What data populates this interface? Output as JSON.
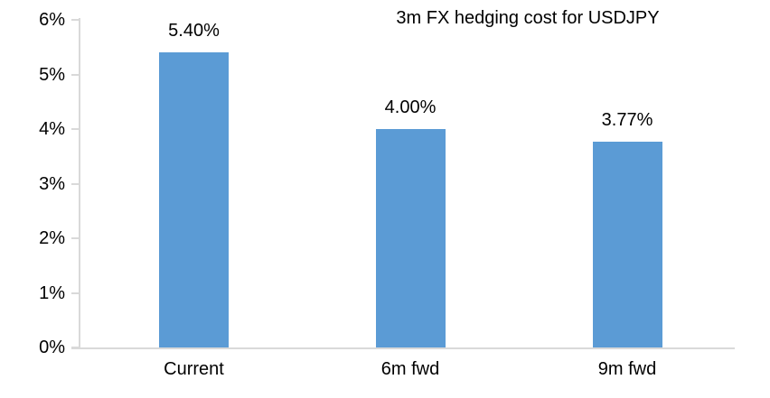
{
  "chart_data": {
    "type": "bar",
    "title": "3m FX hedging cost for USDJPY",
    "categories": [
      "Current",
      "6m fwd",
      "9m fwd"
    ],
    "values": [
      5.4,
      4.0,
      3.77
    ],
    "data_labels": [
      "5.40%",
      "4.00%",
      "3.77%"
    ],
    "y_ticks": [
      "0%",
      "1%",
      "2%",
      "3%",
      "4%",
      "5%",
      "6%"
    ],
    "xlabel": "",
    "ylabel": "",
    "ylim": [
      0,
      6
    ],
    "grid": false,
    "legend_position": "none",
    "bar_color": "#5b9bd5",
    "axis_color": "#d9d9d9",
    "text_color": "#000000",
    "background_color": "#ffffff"
  }
}
